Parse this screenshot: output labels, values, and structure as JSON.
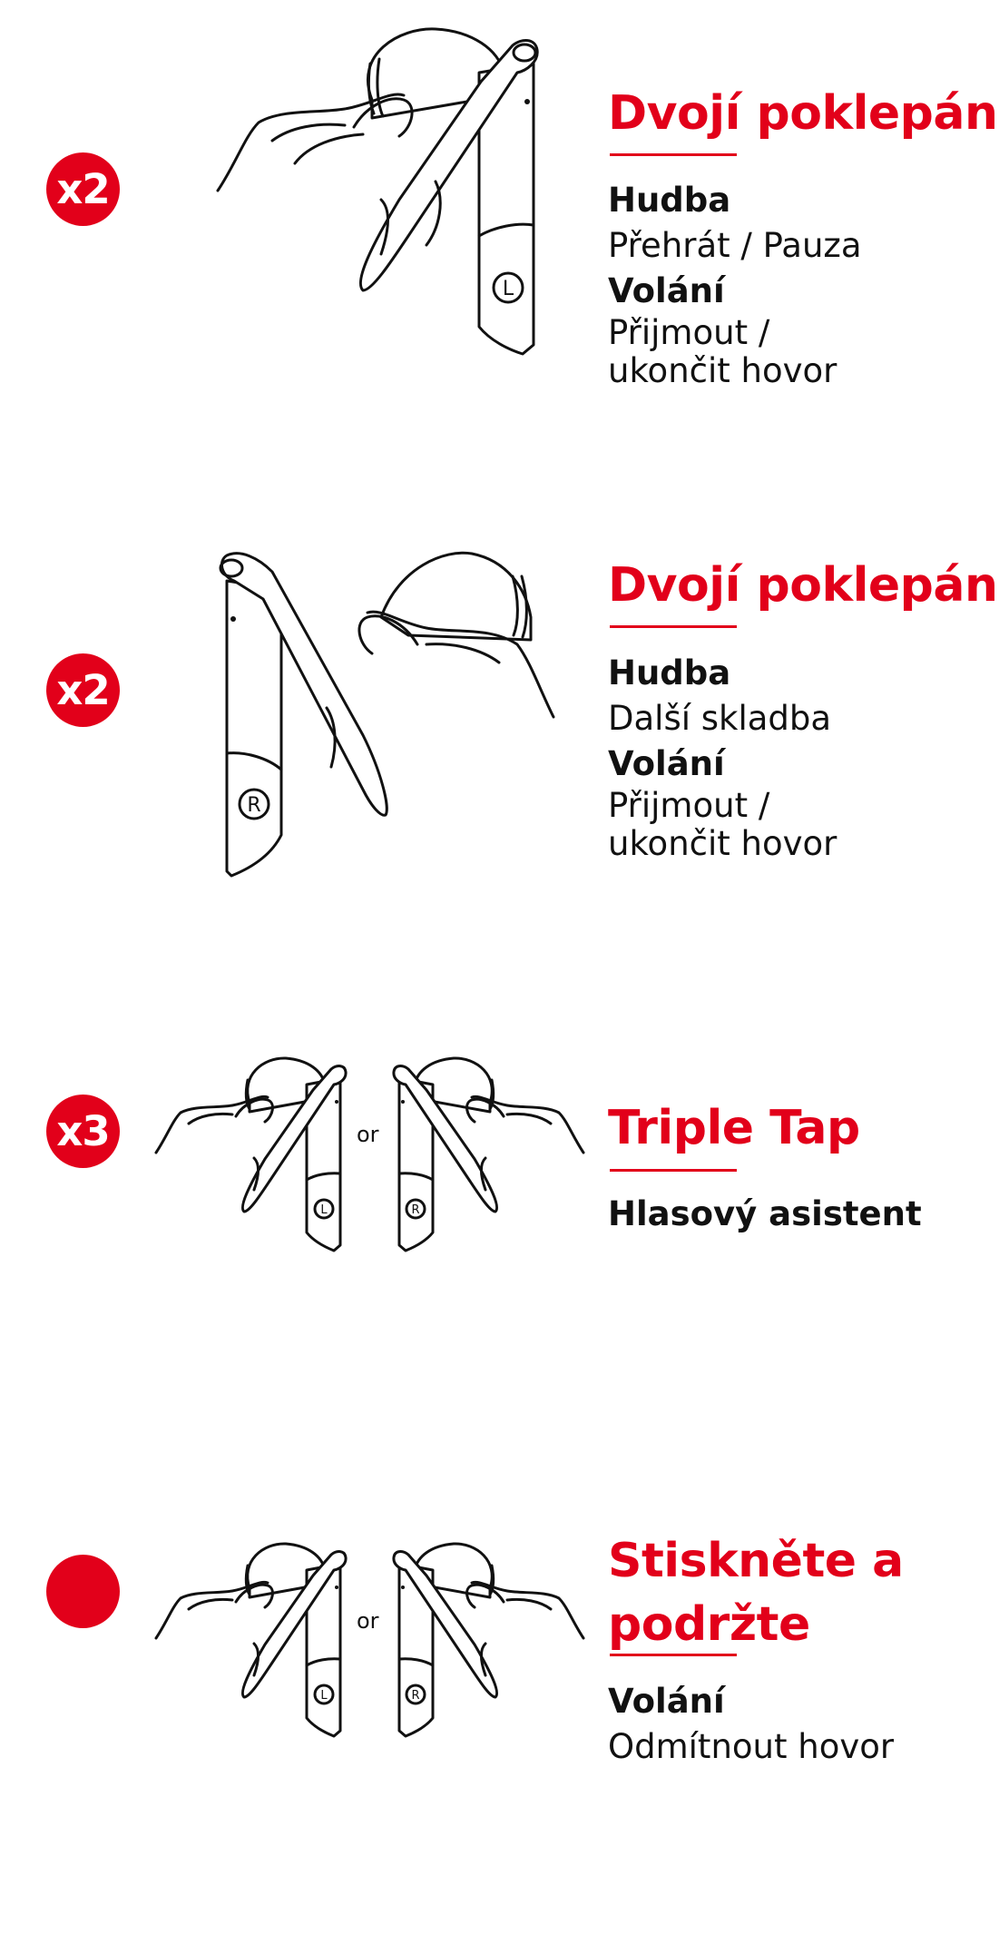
{
  "colors": {
    "accent": "#e2001a",
    "text": "#111111",
    "background": "#ffffff"
  },
  "gestures": [
    {
      "badge": "x2",
      "title": "Dvojí poklepání",
      "illustration": "left-earbud-tap",
      "earbud_letter": "L",
      "lines": [
        {
          "label": "Hudba",
          "text": "Přehrát / Pauza"
        },
        {
          "label": "Volání",
          "text": "Přijmout /\nukončit hovor"
        }
      ]
    },
    {
      "badge": "x2",
      "title": "Dvojí poklepání",
      "illustration": "right-earbud-tap",
      "earbud_letter": "R",
      "lines": [
        {
          "label": "Hudba",
          "text": "Další skladba"
        },
        {
          "label": "Volání",
          "text": "Přijmout /\nukončit hovor"
        }
      ]
    },
    {
      "badge": "x3",
      "title": "Triple Tap",
      "illustration": "both-earbuds-tap",
      "left_letter": "L",
      "right_letter": "R",
      "or_label": "or",
      "lines": [
        {
          "label": "Hlasový asistent",
          "text": ""
        }
      ]
    },
    {
      "badge": "",
      "title": "Stiskněte a\npodržte",
      "illustration": "both-earbuds-hold",
      "left_letter": "L",
      "right_letter": "R",
      "or_label": "or",
      "lines": [
        {
          "label": "Volání",
          "text": "Odmítnout hovor"
        }
      ]
    }
  ]
}
